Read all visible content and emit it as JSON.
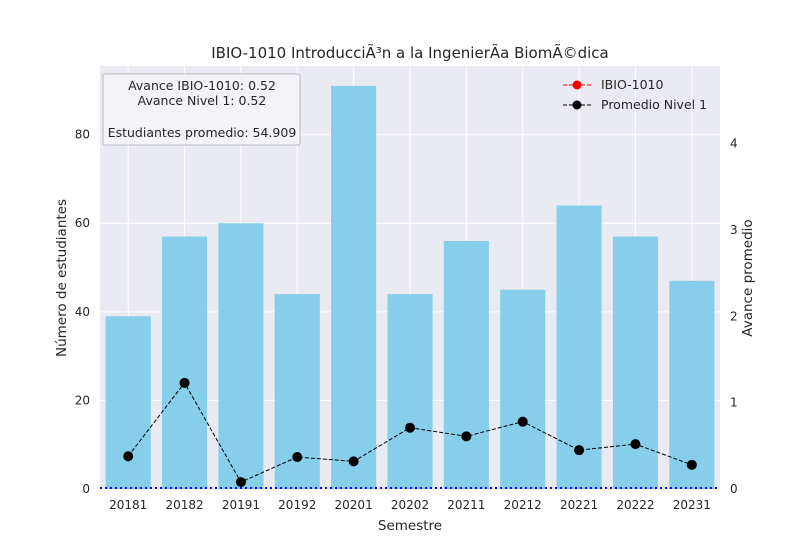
{
  "chart_data": {
    "type": "bar",
    "title": "IBIO-1010 IntroducciÃ³n a la IngenierÃ­a BiomÃ©dica",
    "xlabel": "Semestre",
    "ylabel": "Número de estudiantes",
    "y2label": "Avance promedio",
    "categories": [
      "20181",
      "20182",
      "20191",
      "20192",
      "20201",
      "20202",
      "20211",
      "20212",
      "20221",
      "20222",
      "20231"
    ],
    "bar_values": [
      39,
      57,
      60,
      44,
      91,
      44,
      56,
      45,
      64,
      57,
      47
    ],
    "bar_color": "#87ceeb",
    "line_series": [
      {
        "name": "IBIO-1010",
        "values": [],
        "color": "#ff0000"
      },
      {
        "name": "Promedio Nivel 1",
        "values": [
          0.38,
          1.23,
          0.08,
          0.37,
          0.32,
          0.71,
          0.61,
          0.78,
          0.45,
          0.52,
          0.28
        ],
        "color": "#000000"
      }
    ],
    "y_ticks": [
      "0",
      "20",
      "40",
      "60",
      "80"
    ],
    "y2_ticks": [
      "0",
      "1",
      "2",
      "3",
      "4"
    ],
    "ylim": [
      0,
      95.5
    ],
    "y2lim": [
      0,
      4.9
    ],
    "hline": {
      "value": 0,
      "color": "#0000ff",
      "style": "dotted"
    },
    "legend_position": "top-right",
    "annotation": {
      "line1": "Avance IBIO-1010: 0.52",
      "line2": "Avance Nivel 1: 0.52",
      "line3": "Estudiantes promedio: 54.909"
    },
    "grid": true
  }
}
